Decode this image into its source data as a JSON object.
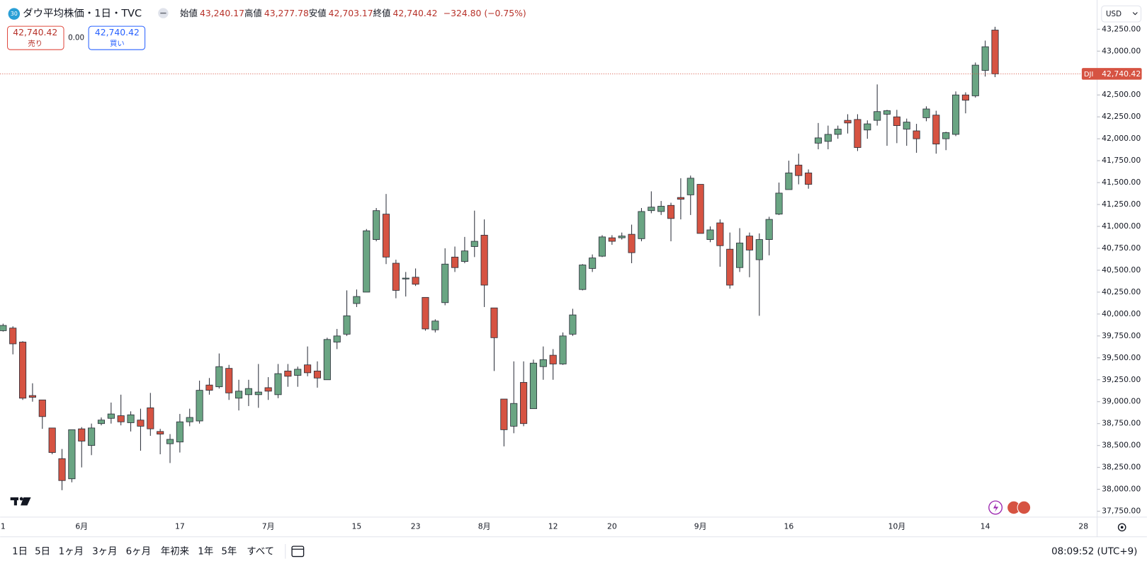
{
  "chart_data": {
    "type": "candlestick",
    "title": "ダウ平均株価・1日・TVC",
    "symbol_badge": "30",
    "ohlc_legend": [
      {
        "label": "始値",
        "value": "43,240.17"
      },
      {
        "label": "高値",
        "value": "43,277.78"
      },
      {
        "label": "安値",
        "value": "42,703.17"
      },
      {
        "label": "終値",
        "value": "42,740.42"
      }
    ],
    "change": "−324.80 (−0.75%)",
    "trade_panel": {
      "sell_price": "42,740.42",
      "sell_label": "売り",
      "spread": "0.00",
      "buy_price": "42,740.42",
      "buy_label": "買い"
    },
    "currency": "USD",
    "price_tag": {
      "symbol": "DJI",
      "value": 42740.42,
      "label": "42,740.42"
    },
    "up_color": "#6aa583",
    "down_color": "#d65342",
    "grid": false,
    "categories": [
      "1",
      null,
      null,
      null,
      null,
      null,
      null,
      null,
      "6月",
      null,
      null,
      null,
      null,
      null,
      null,
      null,
      null,
      null,
      "17",
      null,
      null,
      null,
      null,
      null,
      null,
      null,
      null,
      "7月",
      null,
      null,
      null,
      null,
      null,
      null,
      null,
      null,
      "15",
      null,
      null,
      null,
      null,
      null,
      "23",
      null,
      null,
      null,
      null,
      null,
      null,
      "8月",
      null,
      null,
      null,
      null,
      null,
      null,
      "12",
      null,
      null,
      null,
      null,
      null,
      "20",
      null,
      null,
      null,
      null,
      null,
      null,
      null,
      null,
      "9月",
      null,
      null,
      null,
      null,
      null,
      null,
      null,
      null,
      "16",
      null,
      null,
      null,
      null,
      null,
      null,
      null,
      null,
      null,
      null,
      "10月",
      null,
      null,
      null,
      null,
      null,
      null,
      null,
      null,
      "14",
      null,
      null,
      null,
      null,
      null,
      null,
      null,
      null,
      null,
      "28"
    ],
    "open": [
      39810,
      39840,
      39680,
      39070,
      39020,
      38700,
      38350,
      38120,
      38690,
      38500,
      38750,
      38810,
      38840,
      38760,
      38790,
      38930,
      38660,
      38520,
      38540,
      38770,
      38780,
      39190,
      39170,
      39380,
      39040,
      39080,
      39080,
      39160,
      39080,
      39350,
      39300,
      39420,
      39350,
      39250,
      39680,
      39770,
      40120,
      40250,
      40850,
      41140,
      40580,
      40400,
      40420,
      40190,
      39820,
      40130,
      40650,
      40600,
      40770,
      40900,
      40070,
      39030,
      38720,
      39220,
      38920,
      39400,
      39530,
      39430,
      39770,
      40280,
      40520,
      40660,
      40870,
      40870,
      40910,
      40860,
      41180,
      41170,
      41240,
      41330,
      41360,
      41480,
      40850,
      41040,
      40740,
      40530,
      40890,
      40620,
      40850,
      41140,
      41420,
      41700,
      41610,
      41950,
      41970,
      42050,
      42210,
      42220,
      42100,
      42210,
      42280,
      42250,
      42110,
      42090,
      42240,
      42270,
      42000,
      42050,
      42500,
      42490,
      42780,
      43240.17,
      null,
      null,
      null,
      null,
      null,
      null,
      null,
      null,
      null
    ],
    "high": [
      39890,
      39860,
      39690,
      39210,
      39020,
      38700,
      38460,
      38680,
      38710,
      38750,
      38820,
      38990,
      39080,
      38890,
      38920,
      39100,
      38690,
      38630,
      38860,
      38920,
      39240,
      39270,
      39550,
      39420,
      39250,
      39250,
      39430,
      39280,
      39430,
      39430,
      39400,
      39630,
      39460,
      39730,
      39830,
      40270,
      40280,
      40970,
      41210,
      41370,
      40620,
      40480,
      40520,
      40190,
      39940,
      40750,
      40770,
      40880,
      41180,
      41080,
      40070,
      39030,
      39460,
      39460,
      39480,
      39630,
      39600,
      39790,
      40060,
      40570,
      40680,
      40900,
      40900,
      40930,
      41020,
      41210,
      41400,
      41290,
      41270,
      41550,
      41580,
      41480,
      41000,
      41080,
      40930,
      40980,
      40930,
      40920,
      41110,
      41500,
      41750,
      41830,
      41650,
      42180,
      42150,
      42150,
      42280,
      42280,
      42210,
      42620,
      42330,
      42330,
      42230,
      42170,
      42370,
      42320,
      42080,
      42540,
      42530,
      42870,
      43120,
      43277.78,
      null,
      null,
      null,
      null,
      null,
      null,
      null,
      null,
      null
    ],
    "low": [
      39800,
      39540,
      39020,
      39000,
      38690,
      38400,
      37990,
      38080,
      38250,
      38390,
      38730,
      38750,
      38730,
      38660,
      38440,
      38610,
      38400,
      38300,
      38420,
      38720,
      38750,
      39080,
      39150,
      39020,
      38900,
      38950,
      38930,
      39020,
      39040,
      39170,
      39170,
      39290,
      39160,
      39250,
      39600,
      39750,
      40080,
      40250,
      40830,
      40570,
      40180,
      40200,
      40320,
      39810,
      39790,
      40100,
      40480,
      40580,
      40650,
      40080,
      39350,
      38490,
      38640,
      38720,
      38920,
      39250,
      39250,
      39420,
      39750,
      40270,
      40480,
      40650,
      40790,
      40850,
      40580,
      40830,
      41150,
      41130,
      40830,
      41080,
      41130,
      40920,
      40820,
      40540,
      40290,
      40480,
      40420,
      39980,
      40670,
      41130,
      41420,
      41480,
      41430,
      41880,
      41880,
      42000,
      42060,
      41860,
      42000,
      42150,
      41920,
      41950,
      41920,
      41840,
      42200,
      41830,
      41870,
      42030,
      42290,
      42470,
      42710,
      42703.17,
      null,
      null,
      null,
      null,
      null,
      null,
      null,
      null,
      null
    ],
    "close": [
      39870,
      39660,
      39040,
      39050,
      38830,
      38420,
      38100,
      38680,
      38550,
      38700,
      38790,
      38860,
      38770,
      38850,
      38720,
      38690,
      38630,
      38570,
      38770,
      38820,
      39130,
      39130,
      39400,
      39100,
      39120,
      39150,
      39110,
      39120,
      39320,
      39290,
      39370,
      39330,
      39270,
      39710,
      39750,
      39980,
      40200,
      40950,
      41180,
      40650,
      40270,
      40410,
      40340,
      39830,
      39920,
      40570,
      40530,
      40720,
      40830,
      40330,
      39730,
      38680,
      38980,
      38750,
      39440,
      39480,
      39430,
      39750,
      39990,
      40560,
      40640,
      40880,
      40830,
      40890,
      40700,
      41170,
      41220,
      41230,
      41090,
      41310,
      41550,
      40920,
      40960,
      40780,
      40330,
      40810,
      40730,
      40850,
      41080,
      41380,
      41610,
      41580,
      41480,
      42010,
      42050,
      42110,
      42180,
      41900,
      42170,
      42310,
      42320,
      42150,
      42190,
      42000,
      42340,
      41940,
      42070,
      42500,
      42440,
      42840,
      43050,
      42740.42,
      null,
      null,
      null,
      null,
      null,
      null,
      null,
      null,
      null
    ],
    "ylim": [
      37683.33,
      43583.33
    ],
    "yticks": [
      {
        "value": 37750,
        "label": "37,750.00"
      },
      {
        "value": 38000,
        "label": "38,000.00"
      },
      {
        "value": 38250,
        "label": "38,250.00"
      },
      {
        "value": 38500,
        "label": "38,500.00"
      },
      {
        "value": 38750,
        "label": "38,750.00"
      },
      {
        "value": 39000,
        "label": "39,000.00"
      },
      {
        "value": 39250,
        "label": "39,250.00"
      },
      {
        "value": 39500,
        "label": "39,500.00"
      },
      {
        "value": 39750,
        "label": "39,750.00"
      },
      {
        "value": 40000,
        "label": "40,000.00"
      },
      {
        "value": 40250,
        "label": "40,250.00"
      },
      {
        "value": 40500,
        "label": "40,500.00"
      },
      {
        "value": 40750,
        "label": "40,750.00"
      },
      {
        "value": 41000,
        "label": "41,000.00"
      },
      {
        "value": 41250,
        "label": "41,250.00"
      },
      {
        "value": 41500,
        "label": "41,500.00"
      },
      {
        "value": 41750,
        "label": "41,750.00"
      },
      {
        "value": 42000,
        "label": "42,000.00"
      },
      {
        "value": 42250,
        "label": "42,250.00"
      },
      {
        "value": 42500,
        "label": "42,500.00"
      },
      {
        "value": 42750,
        "label": "42,750.00"
      },
      {
        "value": 43000,
        "label": "43,000.00"
      },
      {
        "value": 43250,
        "label": "43,250.00"
      }
    ]
  },
  "toolbar": {
    "ranges": [
      "1日",
      "5日",
      "1ヶ月",
      "3ヶ月",
      "6ヶ月",
      "年初来",
      "1年",
      "5年",
      "すべて"
    ],
    "clock": "08:09:52 (UTC+9)"
  }
}
